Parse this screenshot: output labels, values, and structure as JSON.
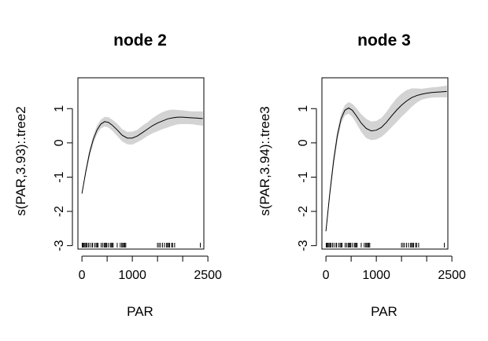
{
  "chart_data": [
    {
      "type": "line",
      "title": "node 2",
      "xlabel": "PAR",
      "ylabel": "s(PAR,3.93):.tree2",
      "xlim": [
        -80,
        2420
      ],
      "ylim": [
        -3.1,
        1.9
      ],
      "x_ticks": [
        0,
        1000,
        2500
      ],
      "x_minor_ticks": [
        500,
        1500,
        2000
      ],
      "y_ticks": [
        -3,
        -2,
        -1,
        0,
        1
      ],
      "band_color": "#d3d3d3",
      "series": [
        {
          "x": [
            0,
            75,
            150,
            225,
            300,
            375,
            450,
            525,
            600,
            700,
            800,
            900,
            1000,
            1100,
            1200,
            1300,
            1400,
            1500,
            1600,
            1700,
            1800,
            1900,
            2000,
            2100,
            2200,
            2300,
            2400
          ],
          "fit": [
            -1.48,
            -0.85,
            -0.3,
            0.1,
            0.38,
            0.55,
            0.62,
            0.6,
            0.52,
            0.38,
            0.22,
            0.14,
            0.14,
            0.2,
            0.3,
            0.4,
            0.5,
            0.58,
            0.64,
            0.7,
            0.73,
            0.75,
            0.75,
            0.74,
            0.73,
            0.72,
            0.71
          ],
          "lower": [
            -1.48,
            -0.93,
            -0.42,
            -0.02,
            0.25,
            0.42,
            0.48,
            0.45,
            0.36,
            0.2,
            0.04,
            -0.04,
            -0.05,
            0.02,
            0.1,
            0.2,
            0.28,
            0.34,
            0.4,
            0.45,
            0.5,
            0.54,
            0.55,
            0.55,
            0.54,
            0.52,
            0.5
          ],
          "upper": [
            -1.48,
            -0.77,
            -0.18,
            0.22,
            0.51,
            0.68,
            0.76,
            0.75,
            0.68,
            0.56,
            0.4,
            0.32,
            0.33,
            0.38,
            0.5,
            0.6,
            0.72,
            0.82,
            0.9,
            0.95,
            0.97,
            0.96,
            0.95,
            0.93,
            0.92,
            0.92,
            0.92
          ]
        }
      ],
      "rug": [
        5,
        20,
        40,
        60,
        80,
        100,
        130,
        160,
        200,
        210,
        250,
        280,
        300,
        320,
        380,
        410,
        440,
        460,
        470,
        490,
        520,
        560,
        580,
        600,
        620,
        700,
        760,
        790,
        810,
        830,
        850,
        870,
        1500,
        1530,
        1560,
        1600,
        1640,
        1680,
        1700,
        1720,
        1740,
        1780,
        1800,
        1840,
        2350
      ]
    },
    {
      "type": "line",
      "title": "node 3",
      "xlabel": "PAR",
      "ylabel": "s(PAR,3.94):.tree3",
      "xlim": [
        -80,
        2420
      ],
      "ylim": [
        -3.1,
        1.9
      ],
      "x_ticks": [
        0,
        1000,
        2500
      ],
      "x_minor_ticks": [
        500,
        1500,
        2000
      ],
      "y_ticks": [
        -3,
        -2,
        -1,
        0,
        1
      ],
      "band_color": "#d3d3d3",
      "series": [
        {
          "x": [
            0,
            75,
            150,
            225,
            300,
            375,
            450,
            525,
            600,
            700,
            800,
            900,
            1000,
            1100,
            1200,
            1300,
            1400,
            1500,
            1600,
            1700,
            1800,
            1900,
            2000,
            2100,
            2200,
            2300,
            2400
          ],
          "fit": [
            -2.58,
            -1.5,
            -0.55,
            0.2,
            0.7,
            0.95,
            1.02,
            0.95,
            0.8,
            0.58,
            0.42,
            0.35,
            0.37,
            0.45,
            0.6,
            0.78,
            0.95,
            1.1,
            1.22,
            1.32,
            1.38,
            1.42,
            1.45,
            1.47,
            1.48,
            1.49,
            1.5
          ],
          "lower": [
            -2.58,
            -1.62,
            -0.72,
            0.04,
            0.55,
            0.8,
            0.85,
            0.76,
            0.58,
            0.32,
            0.14,
            0.08,
            0.1,
            0.17,
            0.3,
            0.45,
            0.6,
            0.76,
            0.9,
            1.05,
            1.17,
            1.26,
            1.3,
            1.32,
            1.33,
            1.33,
            1.33
          ],
          "upper": [
            -2.58,
            -1.38,
            -0.38,
            0.36,
            0.85,
            1.1,
            1.19,
            1.14,
            1.02,
            0.84,
            0.7,
            0.62,
            0.64,
            0.73,
            0.9,
            1.11,
            1.3,
            1.44,
            1.54,
            1.59,
            1.59,
            1.58,
            1.6,
            1.62,
            1.63,
            1.65,
            1.67
          ]
        }
      ],
      "rug": [
        5,
        20,
        40,
        60,
        80,
        100,
        130,
        160,
        200,
        210,
        250,
        280,
        300,
        320,
        380,
        410,
        440,
        460,
        470,
        490,
        520,
        560,
        580,
        600,
        620,
        700,
        760,
        790,
        810,
        830,
        850,
        870,
        1500,
        1530,
        1560,
        1600,
        1640,
        1680,
        1700,
        1720,
        1740,
        1780,
        1800,
        1840,
        2350
      ]
    }
  ]
}
